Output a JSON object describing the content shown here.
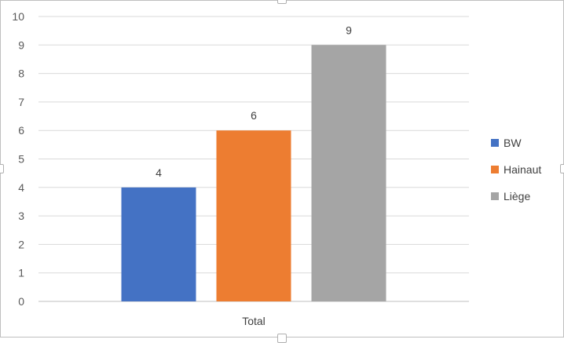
{
  "chart_data": {
    "type": "bar",
    "categories": [
      "Total"
    ],
    "series": [
      {
        "name": "BW",
        "values": [
          4
        ],
        "color": "#4472c4"
      },
      {
        "name": "Hainaut",
        "values": [
          6
        ],
        "color": "#ed7d31"
      },
      {
        "name": "Liège",
        "values": [
          9
        ],
        "color": "#a5a5a5"
      }
    ],
    "title": "",
    "xlabel": "",
    "ylabel": "",
    "ylim": [
      0,
      10
    ],
    "yticks": [
      0,
      1,
      2,
      3,
      4,
      5,
      6,
      7,
      8,
      9,
      10
    ],
    "grid": true,
    "legend_position": "right",
    "data_labels": true
  }
}
